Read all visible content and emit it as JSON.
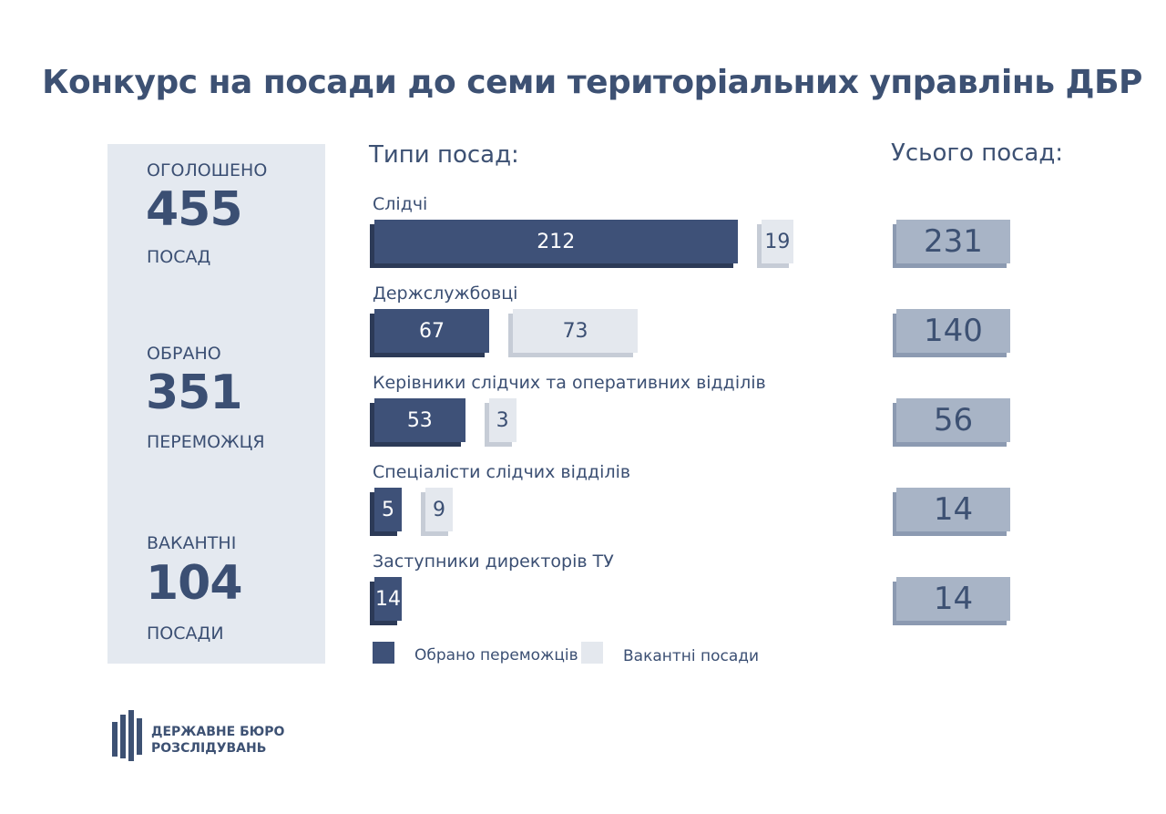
{
  "title": "Конкурс на посади до семи територіальних управлінь ДБР",
  "summary": [
    {
      "label_top": "ОГОЛОШЕНО",
      "value": "455",
      "label_bottom": "ПОСАД"
    },
    {
      "label_top": "ОБРАНО",
      "value": "351",
      "label_bottom": "ПЕРЕМОЖЦЯ"
    },
    {
      "label_top": "ВАКАНТНІ",
      "value": "104",
      "label_bottom": "ПОСАДИ"
    }
  ],
  "types_heading": "Типи посад:",
  "total_heading": "Усього посад:",
  "chart_data": {
    "type": "bar",
    "orientation": "horizontal",
    "categories": [
      "Слідчі",
      "Держслужбовці",
      "Керівники слідчих та оперативних відділів",
      "Спеціалісти слідчих відділів",
      "Заступники директорів ТУ"
    ],
    "series": [
      {
        "name": "Обрано переможців",
        "color": "#3e5178",
        "values": [
          212,
          67,
          53,
          5,
          14
        ]
      },
      {
        "name": "Вакантні посади",
        "color": "#e4e8ee",
        "values": [
          19,
          73,
          3,
          9,
          0
        ]
      }
    ],
    "totals": [
      231,
      140,
      56,
      14,
      14
    ],
    "legend": "bottom"
  },
  "legend": {
    "won": "Обрано переможців",
    "vacant": "Вакантні посади"
  },
  "logo": {
    "line1": "ДЕРЖАВНЕ БЮРО",
    "line2": "РОЗСЛІДУВАНЬ"
  }
}
